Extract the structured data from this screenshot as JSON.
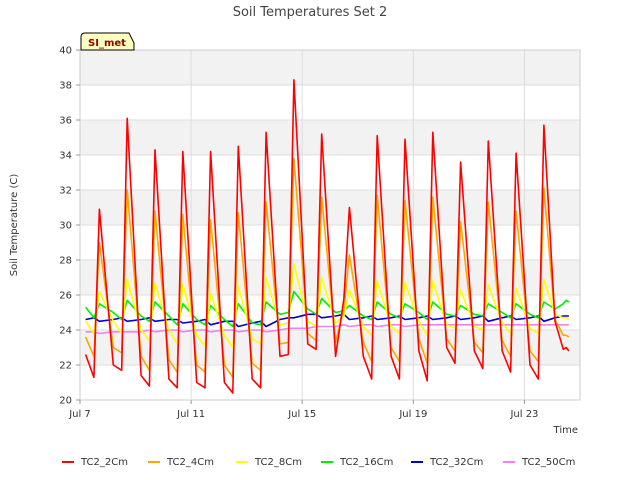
{
  "chart_data": {
    "type": "line",
    "title": "Soil Temperatures Set 2",
    "xlabel": "Time",
    "ylabel": "Soil Temperature (C)",
    "ylim": [
      20,
      40
    ],
    "yticks": [
      20,
      22,
      24,
      26,
      28,
      30,
      32,
      34,
      36,
      38,
      40
    ],
    "xlim": [
      "Jul 7",
      "Jul 25"
    ],
    "xticks": [
      "Jul 7",
      "Jul 11",
      "Jul 15",
      "Jul 19",
      "Jul 23"
    ],
    "xtick_days": [
      7,
      11,
      15,
      19,
      23
    ],
    "grid": true,
    "legend_position": "bottom",
    "annotation": "SI_met",
    "x_days": [
      7.2,
      7.5,
      7.7,
      8.2,
      8.5,
      8.7,
      9.2,
      9.5,
      9.7,
      10.2,
      10.5,
      10.7,
      11.2,
      11.5,
      11.7,
      12.2,
      12.5,
      12.7,
      13.2,
      13.5,
      13.7,
      14.2,
      14.5,
      14.7,
      15.2,
      15.5,
      15.7,
      16.2,
      16.5,
      16.7,
      17.2,
      17.5,
      17.7,
      18.2,
      18.5,
      18.7,
      19.2,
      19.5,
      19.7,
      20.2,
      20.5,
      20.7,
      21.2,
      21.5,
      21.7,
      22.2,
      22.5,
      22.7,
      23.2,
      23.5,
      23.7,
      24.1,
      24.4,
      24.5,
      24.6
    ],
    "series": [
      {
        "name": "TC2_2Cm",
        "color": "#ff0000",
        "values": [
          22.6,
          21.3,
          30.9,
          22.0,
          21.7,
          36.1,
          21.4,
          20.8,
          34.3,
          21.2,
          20.7,
          34.2,
          21.0,
          20.7,
          34.2,
          21.0,
          20.4,
          34.5,
          21.2,
          20.7,
          35.3,
          22.5,
          22.6,
          38.3,
          23.2,
          22.9,
          35.2,
          22.5,
          25.8,
          31.0,
          22.5,
          21.2,
          35.1,
          22.5,
          21.2,
          34.9,
          22.8,
          21.1,
          35.3,
          23.0,
          22.1,
          33.6,
          22.8,
          21.8,
          34.8,
          22.8,
          21.6,
          34.1,
          22.0,
          21.2,
          35.7,
          24.5,
          22.9,
          23.0,
          22.8
        ]
      },
      {
        "name": "TC2_4Cm",
        "color": "#ffa500",
        "values": [
          23.6,
          22.5,
          29.0,
          23.0,
          22.7,
          32.0,
          22.5,
          21.7,
          30.8,
          22.3,
          21.6,
          30.6,
          22.0,
          21.6,
          30.3,
          22.0,
          21.3,
          30.7,
          22.1,
          21.7,
          31.3,
          23.2,
          23.3,
          33.8,
          23.8,
          23.4,
          31.6,
          23.3,
          25.2,
          28.3,
          23.3,
          22.2,
          31.7,
          23.0,
          22.2,
          31.4,
          23.5,
          22.1,
          31.6,
          23.5,
          22.8,
          30.2,
          23.3,
          22.7,
          31.3,
          23.4,
          22.5,
          30.8,
          22.8,
          22.2,
          32.1,
          24.6,
          23.7,
          23.7,
          23.6
        ]
      },
      {
        "name": "TC2_8Cm",
        "color": "#ffff00",
        "values": [
          24.5,
          23.8,
          26.2,
          24.5,
          23.8,
          26.9,
          24.0,
          23.4,
          26.7,
          24.0,
          23.2,
          26.6,
          23.7,
          23.1,
          26.1,
          23.7,
          23.0,
          26.5,
          23.5,
          23.2,
          27.0,
          24.3,
          24.4,
          27.8,
          24.5,
          24.2,
          27.0,
          24.4,
          24.8,
          26.3,
          24.2,
          23.7,
          26.8,
          24.2,
          23.8,
          26.7,
          24.5,
          23.7,
          26.8,
          24.3,
          24.1,
          26.3,
          24.2,
          24.0,
          26.6,
          24.4,
          23.8,
          26.4,
          24.1,
          23.8,
          26.9,
          24.9,
          24.7,
          24.7,
          24.6
        ]
      },
      {
        "name": "TC2_16Cm",
        "color": "#00ee00",
        "values": [
          25.3,
          24.7,
          25.5,
          25.0,
          24.6,
          25.7,
          24.8,
          24.5,
          25.6,
          24.8,
          24.3,
          25.5,
          24.6,
          24.3,
          25.4,
          24.6,
          24.2,
          25.5,
          24.4,
          24.3,
          25.6,
          24.9,
          25.0,
          26.2,
          25.2,
          24.9,
          25.8,
          25.0,
          25.1,
          25.4,
          24.8,
          24.6,
          25.6,
          24.9,
          24.7,
          25.5,
          25.0,
          24.6,
          25.6,
          24.9,
          24.8,
          25.4,
          24.9,
          24.8,
          25.5,
          25.0,
          24.7,
          25.5,
          24.9,
          24.7,
          25.6,
          25.2,
          25.5,
          25.7,
          25.6
        ]
      },
      {
        "name": "TC2_32Cm",
        "color": "#0000cc",
        "values": [
          24.6,
          24.7,
          24.5,
          24.6,
          24.7,
          24.5,
          24.6,
          24.7,
          24.5,
          24.6,
          24.6,
          24.4,
          24.5,
          24.6,
          24.3,
          24.5,
          24.5,
          24.2,
          24.4,
          24.5,
          24.2,
          24.6,
          24.7,
          24.7,
          24.9,
          24.9,
          24.7,
          24.8,
          24.9,
          24.6,
          24.7,
          24.8,
          24.6,
          24.7,
          24.8,
          24.6,
          24.7,
          24.8,
          24.6,
          24.7,
          24.8,
          24.6,
          24.7,
          24.8,
          24.5,
          24.7,
          24.8,
          24.6,
          24.7,
          24.8,
          24.5,
          24.7,
          24.8,
          24.8,
          24.8
        ]
      },
      {
        "name": "TC2_50Cm",
        "color": "#ee82ee",
        "values": [
          23.9,
          23.9,
          23.8,
          23.9,
          23.9,
          23.9,
          23.9,
          24.0,
          23.9,
          24.0,
          24.0,
          23.9,
          24.0,
          24.0,
          23.9,
          24.0,
          24.0,
          23.9,
          24.0,
          24.0,
          23.9,
          24.0,
          24.1,
          24.1,
          24.1,
          24.2,
          24.2,
          24.2,
          24.3,
          24.2,
          24.3,
          24.3,
          24.2,
          24.3,
          24.3,
          24.2,
          24.3,
          24.3,
          24.3,
          24.3,
          24.3,
          24.3,
          24.3,
          24.3,
          24.3,
          24.3,
          24.3,
          24.3,
          24.3,
          24.3,
          24.3,
          24.3,
          24.3,
          24.3,
          24.3
        ]
      }
    ]
  }
}
